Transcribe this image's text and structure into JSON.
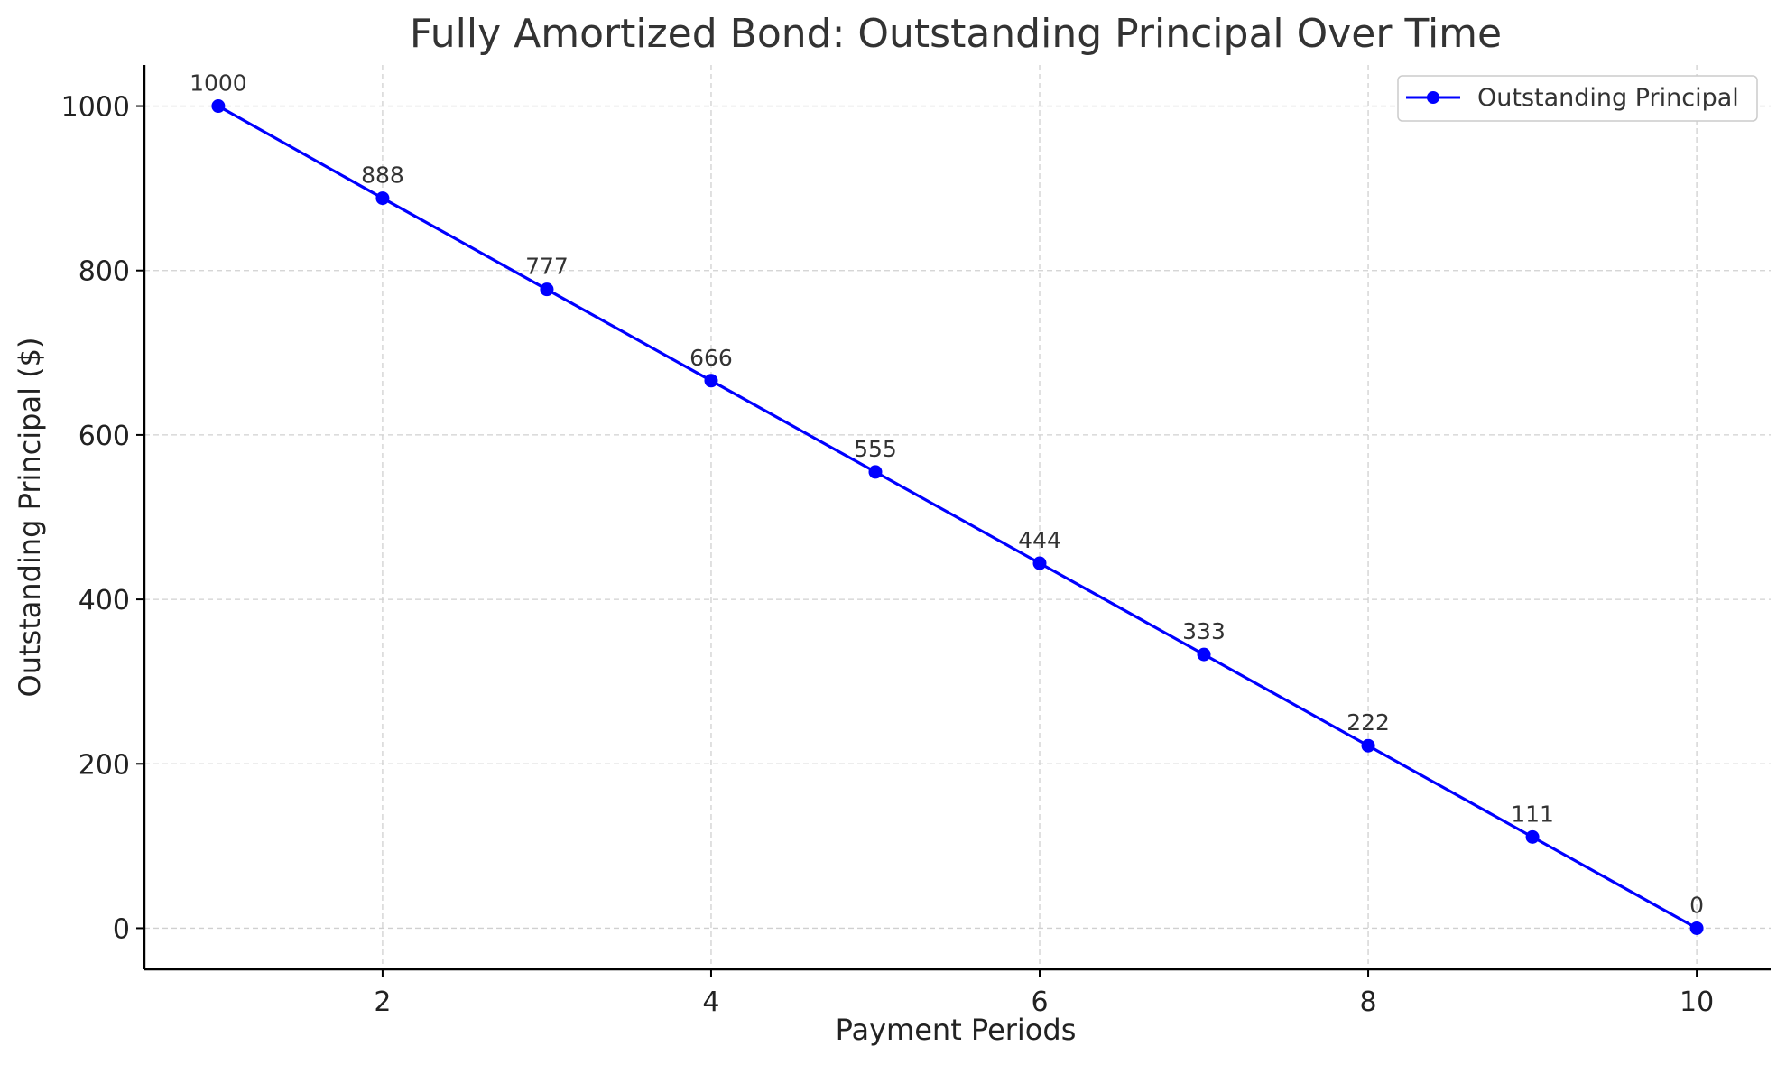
{
  "chart_data": {
    "type": "line",
    "title": "Fully Amortized Bond: Outstanding Principal Over Time",
    "xlabel": "Payment Periods",
    "ylabel": "Outstanding Principal ($)",
    "xlim": [
      0.55,
      10.45
    ],
    "ylim": [
      -50,
      1050
    ],
    "xticks": [
      2,
      4,
      6,
      8,
      10
    ],
    "yticks": [
      0,
      200,
      400,
      600,
      800,
      1000
    ],
    "grid": true,
    "legend_position": "top-right",
    "series": [
      {
        "name": "Outstanding Principal",
        "color": "#0000ff",
        "marker": "circle",
        "x": [
          1,
          2,
          3,
          4,
          5,
          6,
          7,
          8,
          9,
          10
        ],
        "y": [
          1000,
          888,
          777,
          666,
          555,
          444,
          333,
          222,
          111,
          0
        ],
        "labels": [
          "1000",
          "888",
          "777",
          "666",
          "555",
          "444",
          "333",
          "222",
          "111",
          "0"
        ]
      }
    ]
  }
}
